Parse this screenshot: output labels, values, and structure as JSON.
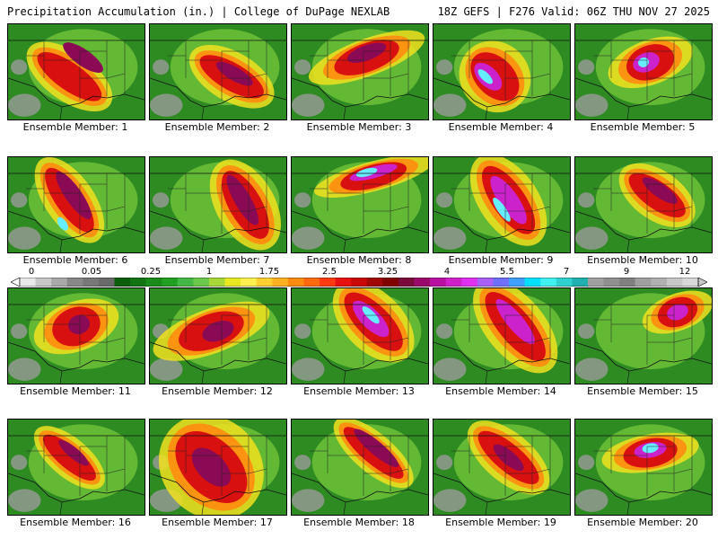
{
  "header": {
    "left": "Precipitation Accumulation (in.) | College of DuPage NEXLAB",
    "right": "18Z GEFS | F276 Valid: 06Z THU NOV 27 2025"
  },
  "members": [
    {
      "label": "Ensemble Member: 1",
      "blobs": [
        [
          0.45,
          0.55,
          0.1,
          0.4,
          -55,
          "#d81010"
        ],
        [
          0.55,
          0.35,
          0.06,
          0.25,
          -55,
          "#8b0a55"
        ]
      ]
    },
    {
      "label": "Ensemble Member: 2",
      "blobs": [
        [
          0.6,
          0.55,
          0.1,
          0.38,
          -60,
          "#d81010"
        ],
        [
          0.62,
          0.52,
          0.05,
          0.22,
          -60,
          "#8b0a55"
        ]
      ]
    },
    {
      "label": "Ensemble Member: 3",
      "blobs": [
        [
          0.55,
          0.35,
          0.25,
          0.15,
          -20,
          "#d81010"
        ],
        [
          0.55,
          0.3,
          0.15,
          0.08,
          -20,
          "#8b0a55"
        ]
      ]
    },
    {
      "label": "Ensemble Member: 4",
      "blobs": [
        [
          0.45,
          0.55,
          0.14,
          0.3,
          -45,
          "#d81010"
        ],
        [
          0.4,
          0.55,
          0.07,
          0.18,
          -45,
          "#cc22cc"
        ],
        [
          0.38,
          0.55,
          0.03,
          0.1,
          -45,
          "#66eeff"
        ]
      ]
    },
    {
      "label": "Ensemble Member: 5",
      "blobs": [
        [
          0.55,
          0.4,
          0.18,
          0.18,
          -20,
          "#d81010"
        ],
        [
          0.52,
          0.4,
          0.1,
          0.1,
          -20,
          "#cc22cc"
        ],
        [
          0.5,
          0.4,
          0.04,
          0.05,
          -20,
          "#66eeff"
        ]
      ]
    },
    {
      "label": "Ensemble Member: 6",
      "blobs": [
        [
          0.45,
          0.45,
          0.1,
          0.4,
          -35,
          "#d81010"
        ],
        [
          0.48,
          0.4,
          0.06,
          0.3,
          -35,
          "#8b0a55"
        ],
        [
          0.4,
          0.7,
          0.03,
          0.08,
          -35,
          "#66eeff"
        ]
      ]
    },
    {
      "label": "Ensemble Member: 7",
      "blobs": [
        [
          0.7,
          0.5,
          0.12,
          0.4,
          -30,
          "#d81010"
        ],
        [
          0.68,
          0.45,
          0.06,
          0.3,
          -30,
          "#8b0a55"
        ]
      ]
    },
    {
      "label": "Ensemble Member: 8",
      "blobs": [
        [
          0.6,
          0.2,
          0.25,
          0.12,
          -15,
          "#d81010"
        ],
        [
          0.6,
          0.16,
          0.18,
          0.06,
          -15,
          "#cc22cc"
        ],
        [
          0.55,
          0.16,
          0.08,
          0.04,
          -15,
          "#66eeff"
        ]
      ]
    },
    {
      "label": "Ensemble Member: 9",
      "blobs": [
        [
          0.55,
          0.45,
          0.12,
          0.42,
          -35,
          "#d81010"
        ],
        [
          0.55,
          0.45,
          0.07,
          0.3,
          -35,
          "#cc22cc"
        ],
        [
          0.5,
          0.55,
          0.03,
          0.15,
          -35,
          "#66eeff"
        ]
      ]
    },
    {
      "label": "Ensemble Member: 10",
      "blobs": [
        [
          0.6,
          0.4,
          0.1,
          0.35,
          -55,
          "#d81010"
        ],
        [
          0.62,
          0.35,
          0.05,
          0.22,
          -55,
          "#8b0a55"
        ]
      ]
    },
    {
      "label": "Ensemble Member: 11",
      "blobs": [
        [
          0.5,
          0.4,
          0.18,
          0.2,
          -20,
          "#d81010"
        ],
        [
          0.52,
          0.38,
          0.08,
          0.1,
          -20,
          "#8b0a55"
        ]
      ]
    },
    {
      "label": "Ensemble Member: 12",
      "blobs": [
        [
          0.45,
          0.45,
          0.25,
          0.18,
          -20,
          "#d81010"
        ],
        [
          0.5,
          0.45,
          0.12,
          0.1,
          -20,
          "#8b0a55"
        ]
      ]
    },
    {
      "label": "Ensemble Member: 13",
      "blobs": [
        [
          0.6,
          0.35,
          0.12,
          0.4,
          -45,
          "#d81010"
        ],
        [
          0.58,
          0.32,
          0.07,
          0.25,
          -45,
          "#cc22cc"
        ],
        [
          0.58,
          0.28,
          0.03,
          0.12,
          -45,
          "#66eeff"
        ]
      ]
    },
    {
      "label": "Ensemble Member: 14",
      "blobs": [
        [
          0.6,
          0.4,
          0.12,
          0.45,
          -40,
          "#d81010"
        ],
        [
          0.6,
          0.35,
          0.06,
          0.3,
          -40,
          "#cc22cc"
        ]
      ]
    },
    {
      "label": "Ensemble Member: 15",
      "blobs": [
        [
          0.75,
          0.25,
          0.15,
          0.15,
          -20,
          "#d81010"
        ],
        [
          0.75,
          0.25,
          0.08,
          0.08,
          -20,
          "#cc22cc"
        ]
      ]
    },
    {
      "label": "Ensemble Member: 16",
      "blobs": [
        [
          0.45,
          0.4,
          0.08,
          0.35,
          -50,
          "#d81010"
        ],
        [
          0.48,
          0.35,
          0.04,
          0.2,
          -50,
          "#8b0a55"
        ]
      ]
    },
    {
      "label": "Ensemble Member: 17",
      "blobs": [
        [
          0.45,
          0.5,
          0.2,
          0.45,
          -45,
          "#d81010"
        ],
        [
          0.45,
          0.5,
          0.1,
          0.25,
          -45,
          "#8b0a55"
        ]
      ]
    },
    {
      "label": "Ensemble Member: 18",
      "blobs": [
        [
          0.6,
          0.35,
          0.08,
          0.4,
          -50,
          "#d81010"
        ],
        [
          0.62,
          0.3,
          0.05,
          0.3,
          -50,
          "#8b0a55"
        ]
      ]
    },
    {
      "label": "Ensemble Member: 19",
      "blobs": [
        [
          0.55,
          0.4,
          0.1,
          0.4,
          -50,
          "#d81010"
        ],
        [
          0.55,
          0.4,
          0.05,
          0.2,
          -50,
          "#8b0a55"
        ]
      ]
    },
    {
      "label": "Ensemble Member: 20",
      "blobs": [
        [
          0.55,
          0.35,
          0.2,
          0.15,
          -10,
          "#d81010"
        ],
        [
          0.55,
          0.32,
          0.12,
          0.08,
          -10,
          "#cc22cc"
        ],
        [
          0.55,
          0.3,
          0.06,
          0.05,
          -10,
          "#66eeff"
        ]
      ]
    }
  ],
  "legend": {
    "unit": "in.",
    "labels": [
      "0",
      "0.05",
      "0.25",
      "1",
      "1.75",
      "2.5",
      "3.25",
      "4",
      "5.5",
      "7",
      "9",
      "12"
    ],
    "values": [
      0,
      0.05,
      0.25,
      1,
      1.75,
      2.5,
      3.25,
      4,
      5.5,
      7,
      9,
      12
    ],
    "colors": [
      "#e8e8e8",
      "#c8c8c8",
      "#a8a8a8",
      "#888888",
      "#787878",
      "#6a6a6a",
      "#0b5e0b",
      "#137413",
      "#1a8a1a",
      "#22a022",
      "#44b844",
      "#6cc84a",
      "#a8d838",
      "#e8e820",
      "#fff050",
      "#ffd030",
      "#ffb020",
      "#ff8c10",
      "#ff6a10",
      "#ff3a10",
      "#e81010",
      "#c80a0a",
      "#a00808",
      "#800000",
      "#7a0a3a",
      "#9a0a6a",
      "#b810a0",
      "#d020c8",
      "#e030f0",
      "#a860f8",
      "#7070ff",
      "#40a0ff",
      "#00e0ff",
      "#40f0f0",
      "#30d0d0",
      "#20b0b0",
      "#a0a0a0",
      "#909090",
      "#808080",
      "#a0a0a0",
      "#b0b0b0",
      "#c8c8c8",
      "#d8d8d8"
    ]
  }
}
